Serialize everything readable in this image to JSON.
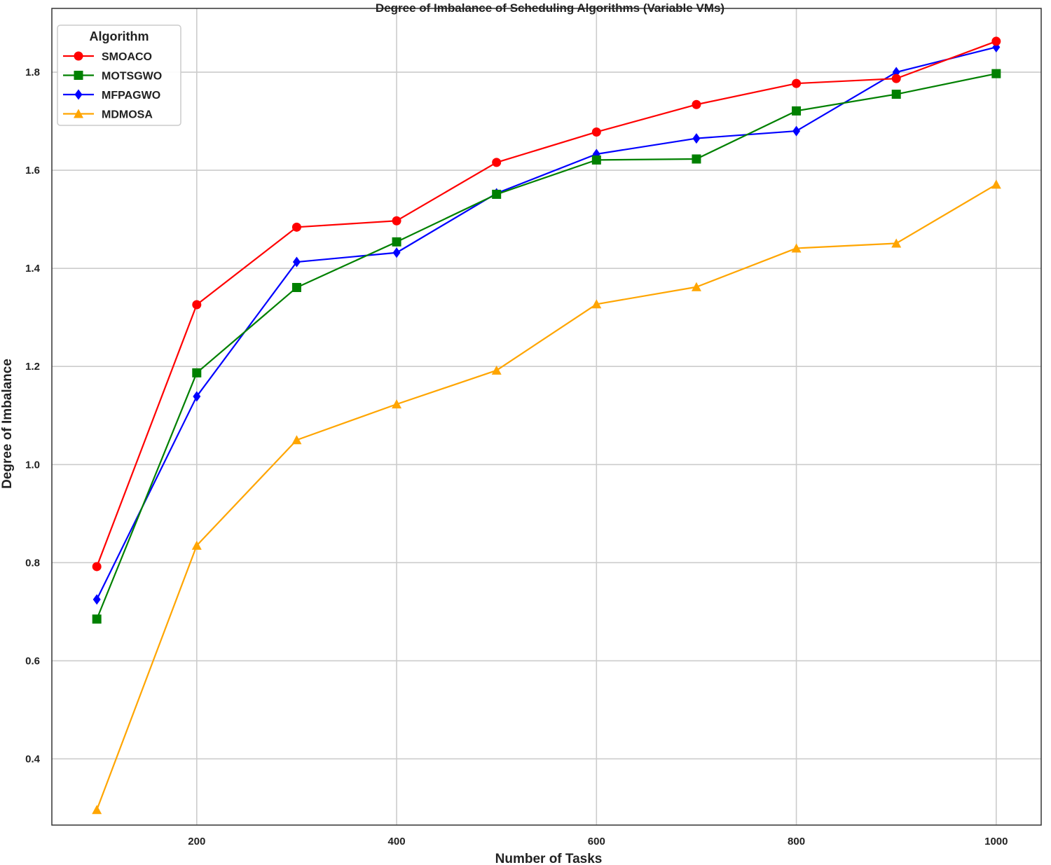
{
  "chart_data": {
    "type": "line",
    "title": "Degree of Imbalance of Scheduling Algorithms (Variable VMs)",
    "xlabel": "Number of Tasks",
    "ylabel": "Degree of Imbalance",
    "x": [
      100,
      200,
      300,
      400,
      500,
      600,
      700,
      800,
      900,
      1000
    ],
    "xlim": [
      55,
      1045
    ],
    "ylim": [
      0.265,
      1.93
    ],
    "xticks": [
      200,
      400,
      600,
      800,
      1000
    ],
    "yticks": [
      0.4,
      0.6,
      0.8,
      1.0,
      1.2,
      1.4,
      1.6,
      1.8
    ],
    "grid": true,
    "legend": {
      "title": "Algorithm",
      "placement": "top-left"
    },
    "series": [
      {
        "name": "SMOACO",
        "color": "#ff0000",
        "marker": "circle",
        "values": [
          0.792,
          1.326,
          1.484,
          1.497,
          1.616,
          1.678,
          1.734,
          1.777,
          1.787,
          1.863
        ]
      },
      {
        "name": "MOTSGWO",
        "color": "#008000",
        "marker": "square",
        "values": [
          0.685,
          1.187,
          1.361,
          1.454,
          1.551,
          1.621,
          1.623,
          1.721,
          1.755,
          1.797
        ]
      },
      {
        "name": "MFPAGWO",
        "color": "#0000ff",
        "marker": "diamond",
        "values": [
          0.725,
          1.139,
          1.413,
          1.432,
          1.553,
          1.633,
          1.665,
          1.68,
          1.8,
          1.851
        ]
      },
      {
        "name": "MDMOSA",
        "color": "#ffa500",
        "marker": "triangle",
        "values": [
          0.296,
          0.835,
          1.05,
          1.123,
          1.192,
          1.327,
          1.362,
          1.441,
          1.451,
          1.571
        ]
      }
    ]
  }
}
